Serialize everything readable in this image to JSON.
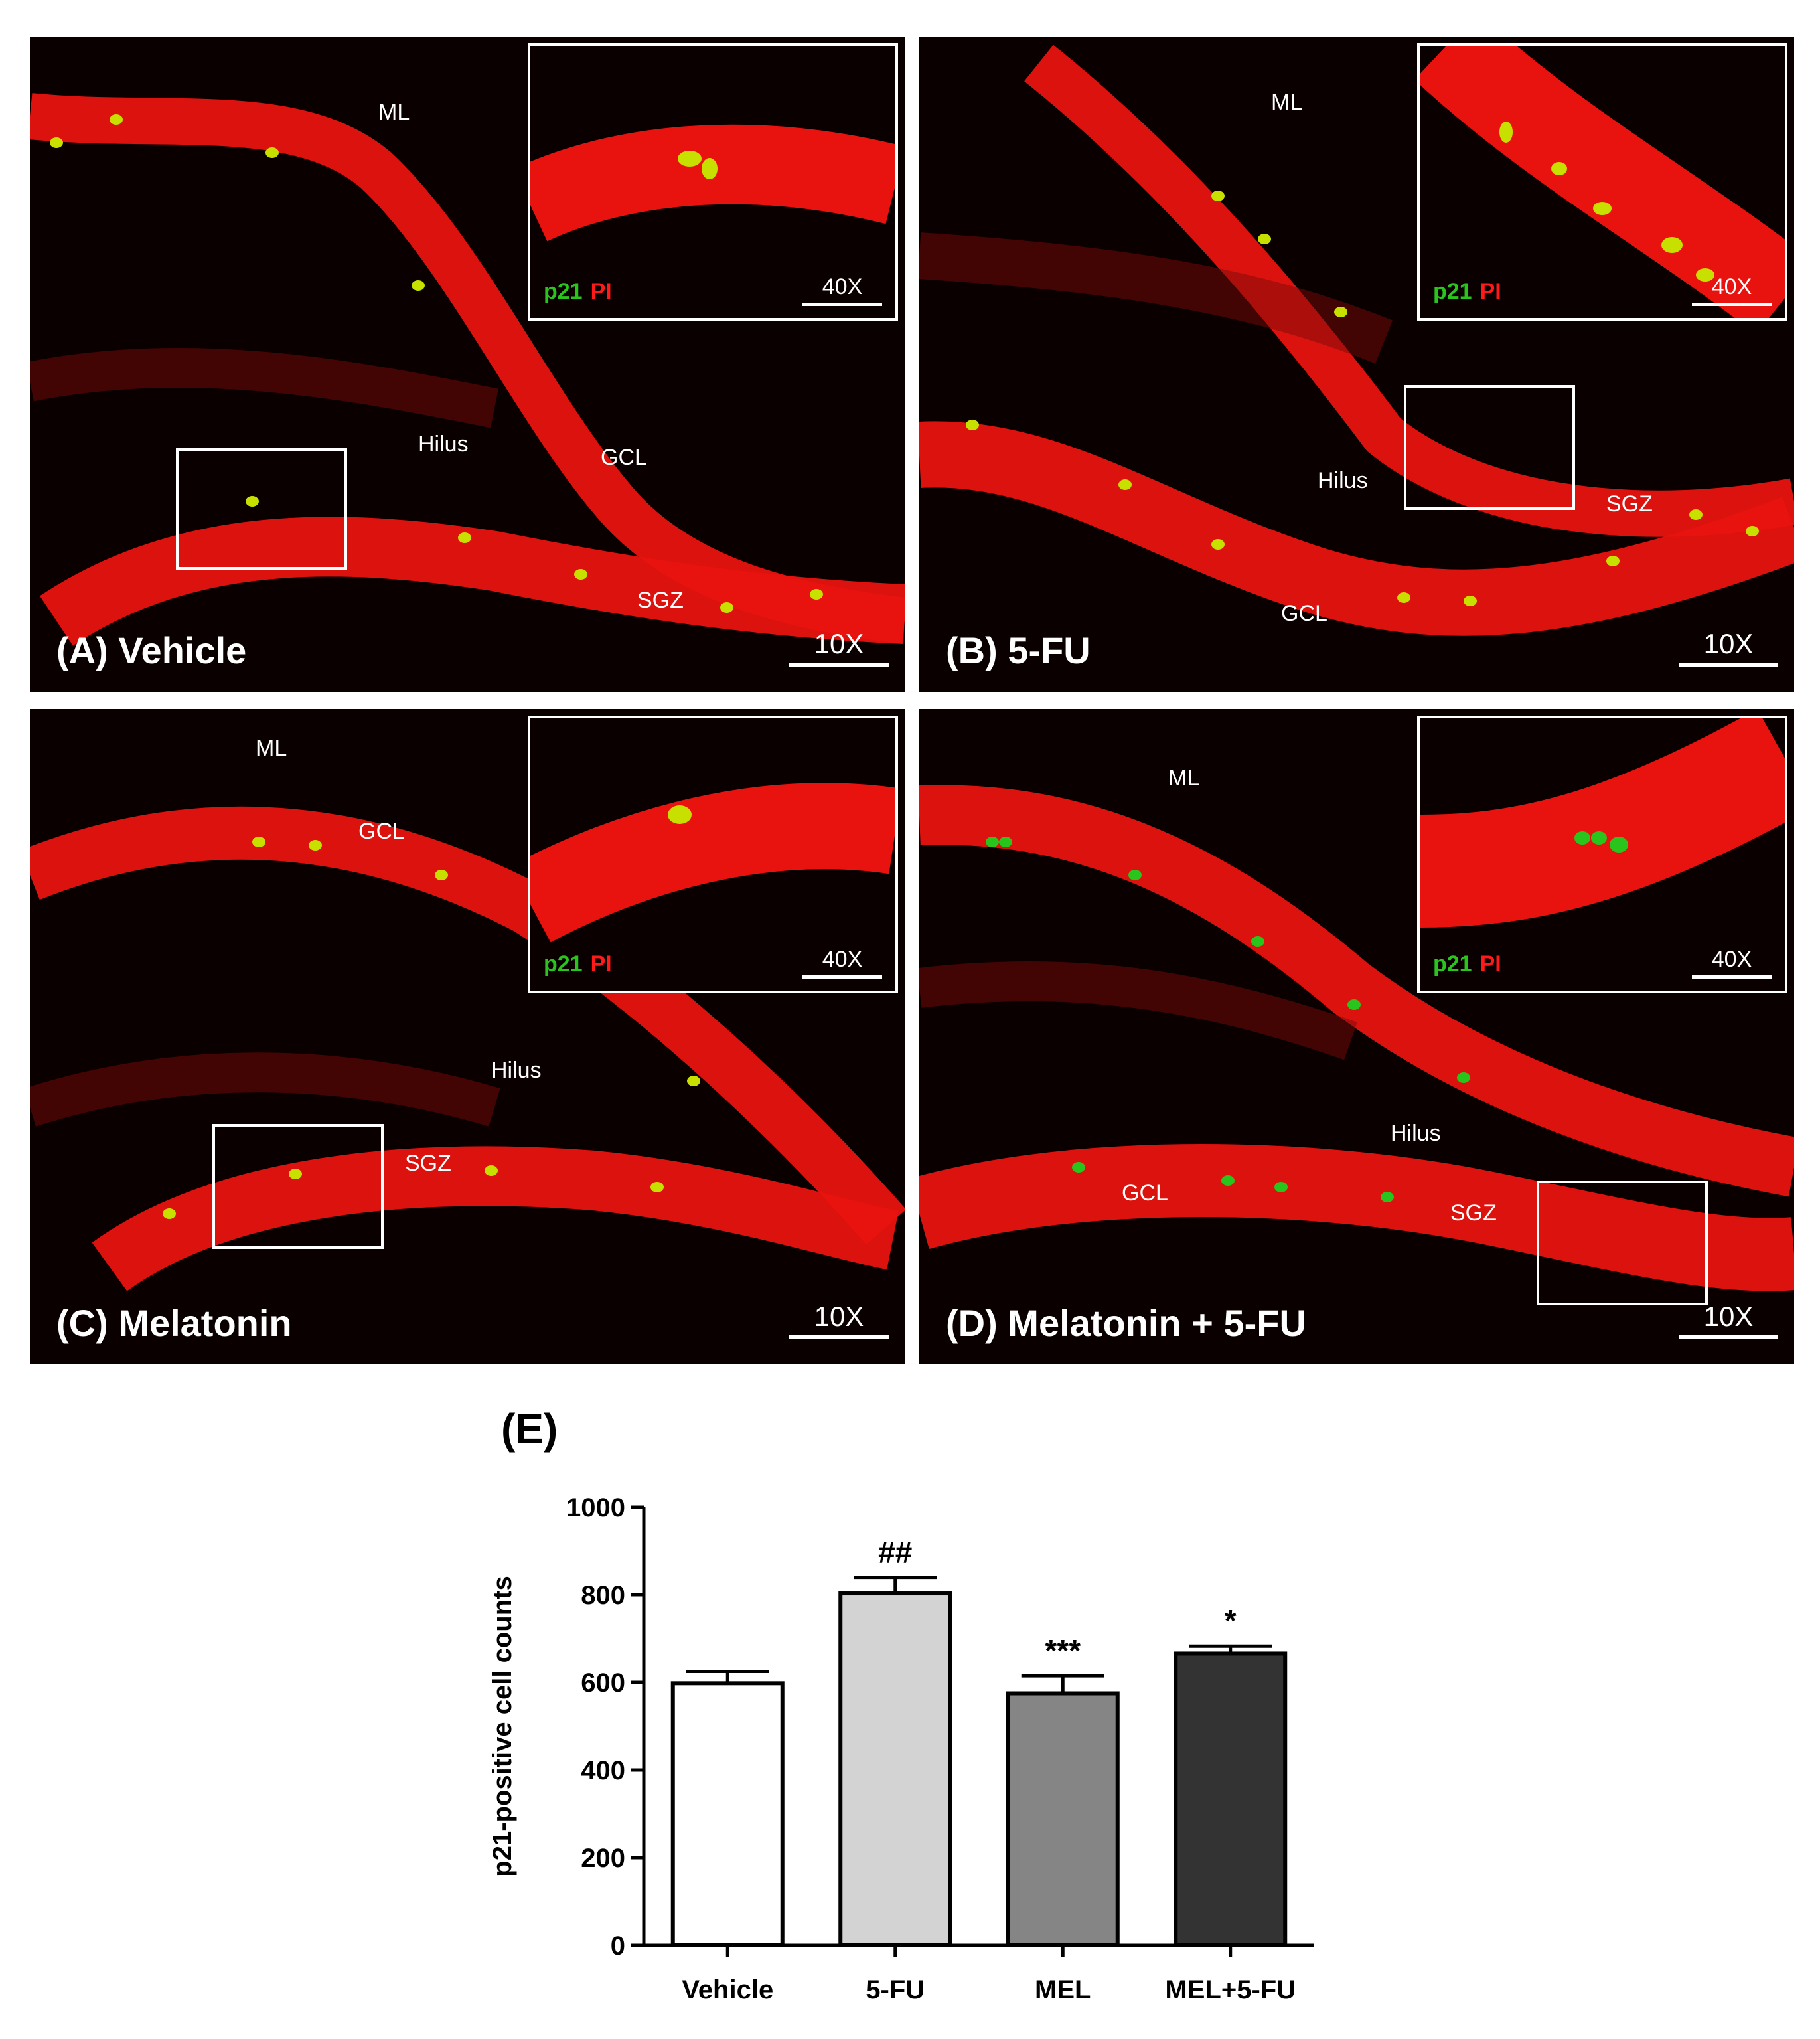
{
  "panels": [
    {
      "id": "A",
      "label": "(A) Vehicle",
      "magnification": "10X",
      "regions": [
        "ML",
        "Hilus",
        "GCL",
        "SGZ"
      ],
      "inset": {
        "stain_green": "p21",
        "stain_red": "PI",
        "magnification": "40X"
      }
    },
    {
      "id": "B",
      "label": "(B) 5-FU",
      "magnification": "10X",
      "regions": [
        "ML",
        "Hilus",
        "SGZ",
        "GCL"
      ],
      "inset": {
        "stain_green": "p21",
        "stain_red": "PI",
        "magnification": "40X"
      }
    },
    {
      "id": "C",
      "label": "(C) Melatonin",
      "magnification": "10X",
      "regions": [
        "ML",
        "GCL",
        "Hilus",
        "SGZ"
      ],
      "inset": {
        "stain_green": "p21",
        "stain_red": "PI",
        "magnification": "40X"
      }
    },
    {
      "id": "D",
      "label": "(D) Melatonin + 5-FU",
      "magnification": "10X",
      "regions": [
        "ML",
        "Hilus",
        "GCL",
        "SGZ"
      ],
      "inset": {
        "stain_green": "p21",
        "stain_red": "PI",
        "magnification": "40X"
      }
    }
  ],
  "colors": {
    "tissue": "#e8130f",
    "background": "#0a0000",
    "cell": "#c8e000"
  },
  "chart_panel_label": "(E)",
  "chart_data": {
    "type": "bar",
    "categories": [
      "Vehicle",
      "5-FU",
      "MEL",
      "MEL+5-FU"
    ],
    "values": [
      598,
      803,
      575,
      666
    ],
    "errors": [
      27,
      37,
      40,
      17
    ],
    "significance": [
      "",
      "##",
      "***",
      "*"
    ],
    "bar_colors": [
      "#ffffff",
      "#d3d3d3",
      "#858585",
      "#333333"
    ],
    "ylabel": "p21-positive cell counts",
    "ylim": [
      0,
      1000
    ],
    "yticks": [
      0,
      200,
      400,
      600,
      800,
      1000
    ],
    "grid": false
  }
}
